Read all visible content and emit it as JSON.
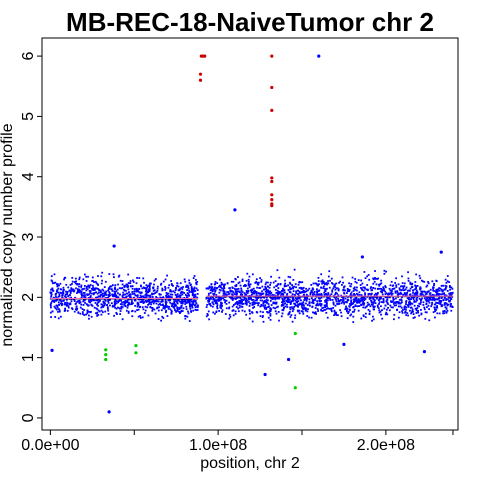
{
  "chart_data": {
    "type": "scatter",
    "title": "MB-REC-18-NaiveTumor chr 2",
    "xlabel": "position, chr 2",
    "ylabel": "normalized copy number profile",
    "xlim": [
      -5000000,
      243000000
    ],
    "ylim": [
      -0.2,
      6.3
    ],
    "x_ticks": [
      0,
      100000000,
      200000000
    ],
    "x_tick_labels": [
      "0.0e+00",
      "1.0e+08",
      "2.0e+08"
    ],
    "y_ticks": [
      0,
      1,
      2,
      3,
      4,
      5,
      6
    ],
    "y_tick_labels": [
      "0",
      "1",
      "2",
      "3",
      "4",
      "5",
      "6"
    ],
    "grid": false,
    "legend": "none",
    "colors": {
      "normal_points": "#0000ff",
      "gain_points": "#cc0000",
      "loss_points": "#00cc00",
      "segment": "#000000",
      "median_line": "#ff69b4"
    },
    "dense_band": {
      "center": 2.0,
      "spread": 0.55,
      "ranges": [
        [
          0,
          88000000
        ],
        [
          93000000,
          240000000
        ]
      ],
      "gap": [
        88000000,
        93000000
      ]
    },
    "segments": [
      {
        "x_start": 0,
        "x_end": 88000000,
        "y": 1.98
      },
      {
        "x_start": 93000000,
        "x_end": 240000000,
        "y": 2.02
      }
    ],
    "outliers_blue": [
      {
        "x": 1000000,
        "y": 1.12
      },
      {
        "x": 35000000,
        "y": 0.1
      },
      {
        "x": 38000000,
        "y": 2.85
      },
      {
        "x": 110000000,
        "y": 3.45
      },
      {
        "x": 128000000,
        "y": 0.72
      },
      {
        "x": 142000000,
        "y": 0.97
      },
      {
        "x": 160000000,
        "y": 6.0
      },
      {
        "x": 175000000,
        "y": 1.22
      },
      {
        "x": 186000000,
        "y": 2.67
      },
      {
        "x": 223000000,
        "y": 1.1
      },
      {
        "x": 233000000,
        "y": 2.75
      }
    ],
    "outliers_red": [
      {
        "x": 90000000,
        "y": 6.0
      },
      {
        "x": 91000000,
        "y": 6.0
      },
      {
        "x": 92000000,
        "y": 6.0
      },
      {
        "x": 89500000,
        "y": 5.7
      },
      {
        "x": 89500000,
        "y": 5.6
      },
      {
        "x": 132000000,
        "y": 6.0
      },
      {
        "x": 132000000,
        "y": 5.48
      },
      {
        "x": 132000000,
        "y": 5.1
      },
      {
        "x": 132000000,
        "y": 3.98
      },
      {
        "x": 132000000,
        "y": 3.92
      },
      {
        "x": 132000000,
        "y": 3.7
      },
      {
        "x": 132000000,
        "y": 3.62
      },
      {
        "x": 132000000,
        "y": 3.55
      },
      {
        "x": 132000000,
        "y": 3.52
      }
    ],
    "outliers_green": [
      {
        "x": 33000000,
        "y": 1.13
      },
      {
        "x": 33000000,
        "y": 1.05
      },
      {
        "x": 33000000,
        "y": 0.97
      },
      {
        "x": 51000000,
        "y": 1.2
      },
      {
        "x": 51000000,
        "y": 1.08
      },
      {
        "x": 146000000,
        "y": 1.4
      },
      {
        "x": 146000000,
        "y": 0.5
      }
    ]
  }
}
